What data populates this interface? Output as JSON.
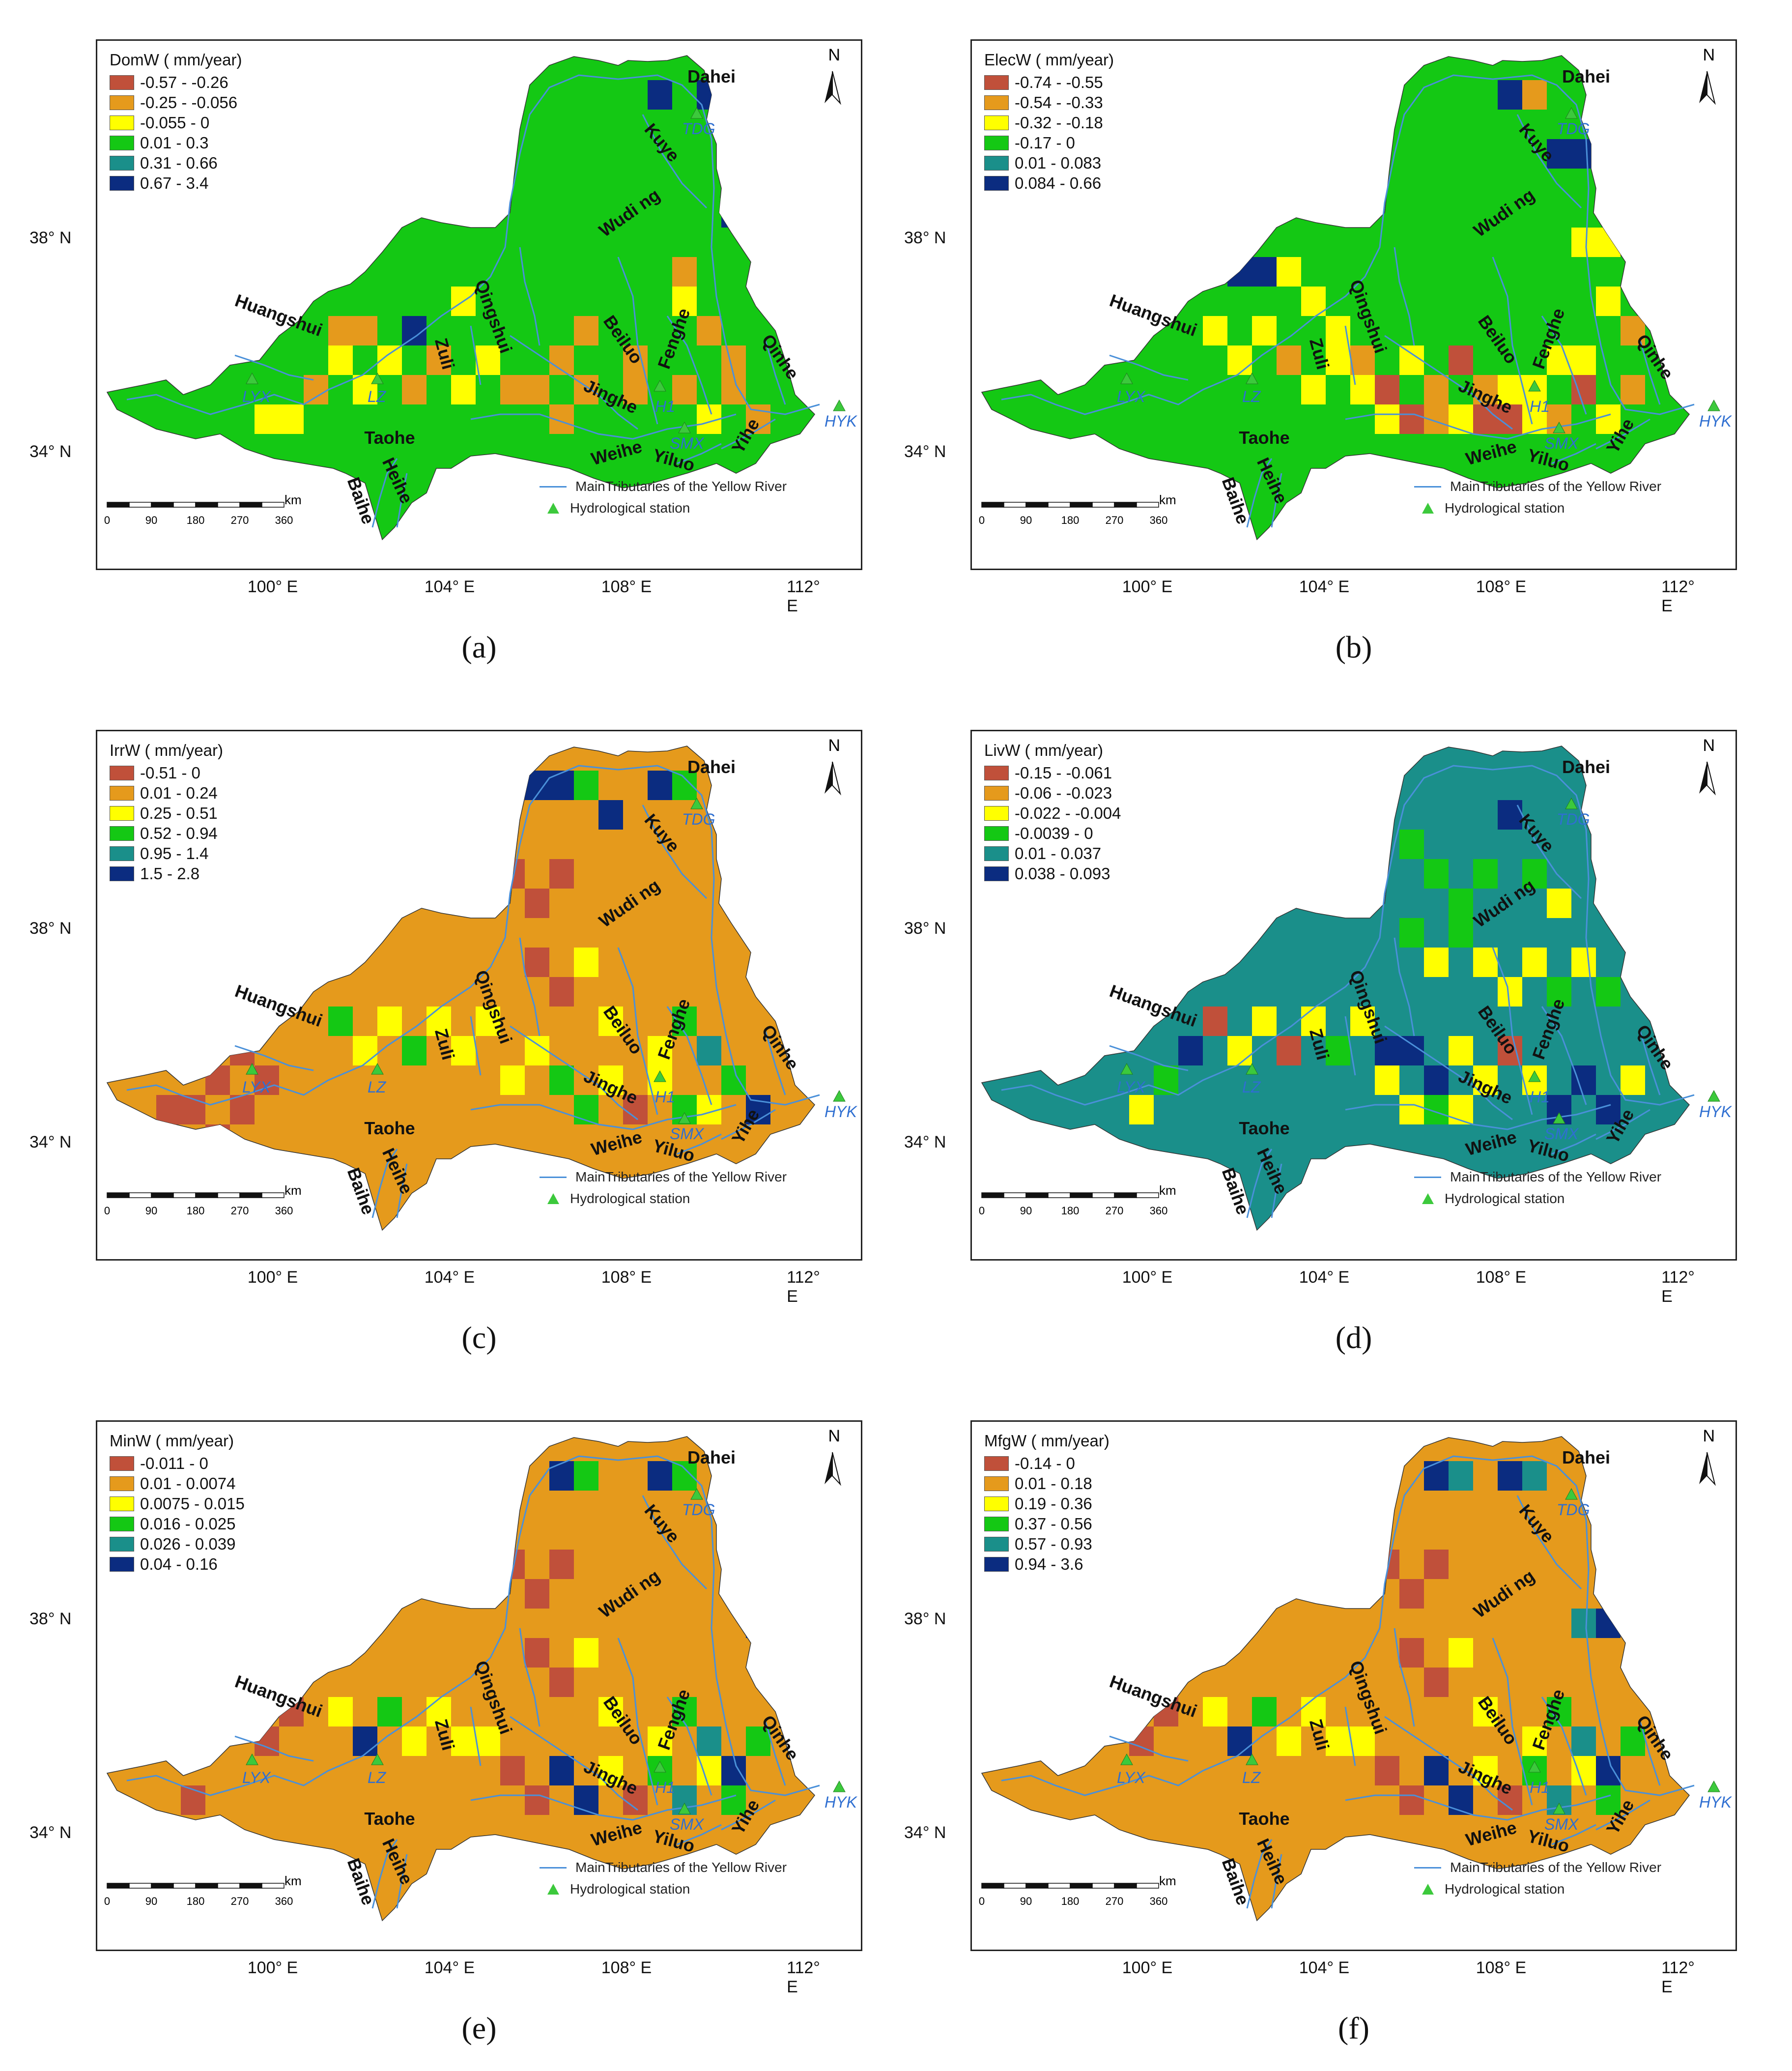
{
  "figure": {
    "panels": [
      {
        "id": "a",
        "caption": "(a)",
        "legend_title": "DomW ( mm/year)",
        "classes": [
          {
            "label": "-0.57 - -0.26",
            "color": "#c0503a"
          },
          {
            "label": "-0.25 - -0.056",
            "color": "#e59a1c"
          },
          {
            "label": "-0.055 - 0",
            "color": "#ffff00"
          },
          {
            "label": "0.01 - 0.3",
            "color": "#14c814"
          },
          {
            "label": "0.31 - 0.66",
            "color": "#1a8f8a"
          },
          {
            "label": "0.67 - 3.4",
            "color": "#0b2c80"
          }
        ],
        "base_class": 3
      },
      {
        "id": "b",
        "caption": "(b)",
        "legend_title": "ElecW ( mm/year)",
        "classes": [
          {
            "label": "-0.74 - -0.55",
            "color": "#c0503a"
          },
          {
            "label": "-0.54 - -0.33",
            "color": "#e59a1c"
          },
          {
            "label": "-0.32 - -0.18",
            "color": "#ffff00"
          },
          {
            "label": "-0.17 - 0",
            "color": "#14c814"
          },
          {
            "label": "0.01 - 0.083",
            "color": "#1a8f8a"
          },
          {
            "label": "0.084 - 0.66",
            "color": "#0b2c80"
          }
        ],
        "base_class": 3
      },
      {
        "id": "c",
        "caption": "(c)",
        "legend_title": "IrrW ( mm/year)",
        "classes": [
          {
            "label": "-0.51 - 0",
            "color": "#c0503a"
          },
          {
            "label": "0.01 - 0.24",
            "color": "#e59a1c"
          },
          {
            "label": "0.25 - 0.51",
            "color": "#ffff00"
          },
          {
            "label": "0.52 - 0.94",
            "color": "#14c814"
          },
          {
            "label": "0.95 - 1.4",
            "color": "#1a8f8a"
          },
          {
            "label": "1.5 - 2.8",
            "color": "#0b2c80"
          }
        ],
        "base_class": 1
      },
      {
        "id": "d",
        "caption": "(d)",
        "legend_title": "LivW ( mm/year)",
        "classes": [
          {
            "label": "-0.15 - -0.061",
            "color": "#c0503a"
          },
          {
            "label": "-0.06 - -0.023",
            "color": "#e59a1c"
          },
          {
            "label": "-0.022 - -0.004",
            "color": "#ffff00"
          },
          {
            "label": "-0.0039 - 0",
            "color": "#14c814"
          },
          {
            "label": "0.01 - 0.037",
            "color": "#1a8f8a"
          },
          {
            "label": "0.038 - 0.093",
            "color": "#0b2c80"
          }
        ],
        "base_class": 4
      },
      {
        "id": "e",
        "caption": "(e)",
        "legend_title": "MinW ( mm/year)",
        "classes": [
          {
            "label": "-0.011 - 0",
            "color": "#c0503a"
          },
          {
            "label": "0.01 - 0.0074",
            "color": "#e59a1c"
          },
          {
            "label": "0.0075 - 0.015",
            "color": "#ffff00"
          },
          {
            "label": "0.016 - 0.025",
            "color": "#14c814"
          },
          {
            "label": "0.026 - 0.039",
            "color": "#1a8f8a"
          },
          {
            "label": "0.04 - 0.16",
            "color": "#0b2c80"
          }
        ],
        "base_class": 1
      },
      {
        "id": "f",
        "caption": "(f)",
        "legend_title": "MfgW ( mm/year)",
        "classes": [
          {
            "label": "-0.14 - 0",
            "color": "#c0503a"
          },
          {
            "label": "0.01 - 0.18",
            "color": "#e59a1c"
          },
          {
            "label": "0.19 - 0.36",
            "color": "#ffff00"
          },
          {
            "label": "0.37 - 0.56",
            "color": "#14c814"
          },
          {
            "label": "0.57 - 0.93",
            "color": "#1a8f8a"
          },
          {
            "label": "0.94 - 3.6",
            "color": "#0b2c80"
          }
        ],
        "base_class": 1
      }
    ],
    "map_labels": {
      "north": "N",
      "river_legend": "MainTributaries of the Yellow River",
      "station_legend": "Hydrological station",
      "scale_unit": "km",
      "scale_ticks": [
        "0",
        "90",
        "180",
        "270",
        "360"
      ],
      "lat_labels": [
        "38° N",
        "34° N"
      ],
      "lon_labels": [
        "100° E",
        "104° E",
        "108° E",
        "112° E"
      ],
      "rivers": [
        "Dahei",
        "Kuye",
        "Wudi ng",
        "Huangshui",
        "Qingshui",
        "Zuli",
        "Beiluo",
        "Fenghe",
        "Qinhe",
        "Jinghe",
        "Taohe",
        "Weihe",
        "Yiluo",
        "Yihe",
        "Baihe",
        "Heihe"
      ],
      "stations": [
        "TDG",
        "LYX",
        "LZ",
        "H1",
        "SMX",
        "HYK"
      ]
    }
  }
}
